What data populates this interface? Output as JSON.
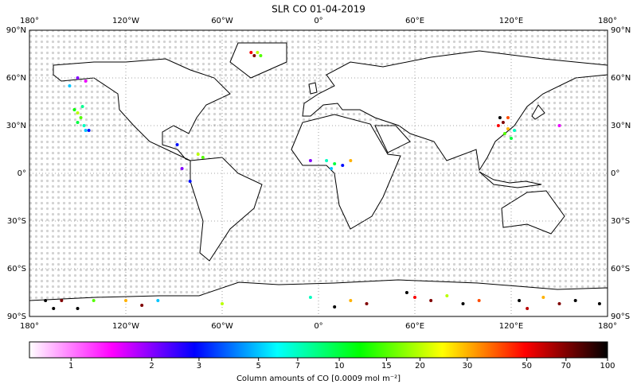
{
  "title": "SLR CO 01-04-2019",
  "map": {
    "lon_range": [
      -180,
      180
    ],
    "lat_range": [
      -90,
      90
    ],
    "lon_ticks": [
      {
        "value": -180,
        "label": "180°"
      },
      {
        "value": -120,
        "label": "120°W"
      },
      {
        "value": -60,
        "label": "60°W"
      },
      {
        "value": 0,
        "label": "0°"
      },
      {
        "value": 60,
        "label": "60°E"
      },
      {
        "value": 120,
        "label": "120°E"
      },
      {
        "value": 180,
        "label": "180°"
      }
    ],
    "lat_ticks": [
      {
        "value": 90,
        "label": "90°N"
      },
      {
        "value": 60,
        "label": "60°N"
      },
      {
        "value": 30,
        "label": "30°N"
      },
      {
        "value": 0,
        "label": "0°"
      },
      {
        "value": -30,
        "label": "30°S"
      },
      {
        "value": -60,
        "label": "60°S"
      },
      {
        "value": -90,
        "label": "90°S"
      }
    ],
    "points": {
      "lon": [
        -42,
        -38,
        -40,
        -36,
        -150,
        -148,
        -146,
        -150,
        -145,
        -143,
        -152,
        -147,
        -150,
        -145,
        -155,
        -88,
        -75,
        -72,
        -85,
        -80,
        5,
        10,
        15,
        20,
        -5,
        8,
        112,
        115,
        118,
        116,
        120,
        113,
        118,
        122,
        150,
        -170,
        -165,
        -160,
        -150,
        -140,
        -120,
        -110,
        -100,
        -60,
        20,
        30,
        55,
        60,
        70,
        80,
        90,
        100,
        125,
        130,
        140,
        150,
        160,
        175,
        -5,
        10
      ],
      "lat": [
        76,
        76,
        74,
        74,
        32,
        35,
        30,
        38,
        27,
        27,
        40,
        42,
        60,
        58,
        55,
        18,
        12,
        10,
        3,
        -5,
        8,
        6,
        5,
        8,
        8,
        3,
        30,
        32,
        28,
        25,
        22,
        35,
        35,
        27,
        30,
        -80,
        -85,
        -80,
        -85,
        -80,
        -80,
        -83,
        -80,
        -82,
        -80,
        -82,
        -75,
        -78,
        -80,
        -77,
        -82,
        -80,
        -80,
        -85,
        -78,
        -82,
        -80,
        -82,
        -78,
        -84
      ],
      "values": [
        50,
        20,
        70,
        15,
        10,
        15,
        7,
        20,
        5,
        3,
        12,
        8,
        2,
        1.5,
        5,
        3,
        20,
        15,
        2,
        3,
        7,
        10,
        3,
        30,
        2,
        5,
        50,
        70,
        30,
        15,
        10,
        100,
        40,
        7,
        1.5,
        100,
        100,
        70,
        100,
        15,
        30,
        70,
        5,
        20,
        30,
        70,
        100,
        50,
        70,
        20,
        100,
        40,
        100,
        60,
        30,
        70,
        100,
        100,
        7,
        100
      ]
    }
  },
  "colorbar": {
    "label": "Column amounts of CO [0.0009 mol m⁻²]",
    "range": [
      0.7,
      100
    ],
    "scale": "log",
    "ticks": [
      1,
      2,
      3,
      5,
      7,
      10,
      15,
      20,
      30,
      50,
      70,
      100
    ],
    "colors": [
      "#ffffff",
      "#ff00ff",
      "#0000ff",
      "#00ffff",
      "#00ff00",
      "#ffff00",
      "#ff0000",
      "#000000"
    ]
  }
}
